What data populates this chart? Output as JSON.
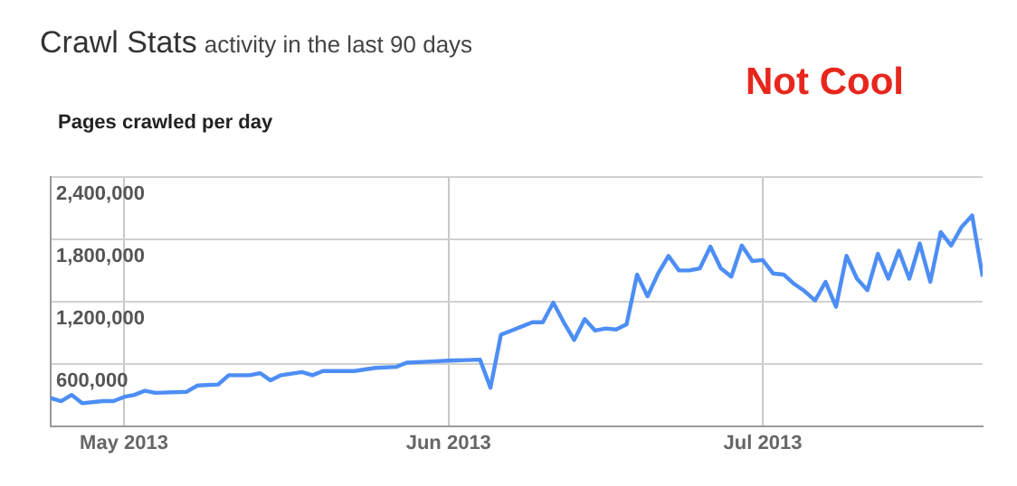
{
  "chart_data": {
    "type": "line",
    "title": "Crawl Stats",
    "subtitle": "activity in the last 90 days",
    "ylabel": "Pages crawled per day",
    "annotations": [
      "Not Cool"
    ],
    "x": [
      "2013-04-24",
      "2013-04-25",
      "2013-04-26",
      "2013-04-27",
      "2013-04-29",
      "2013-04-30",
      "2013-05-01",
      "2013-05-02",
      "2013-05-03",
      "2013-05-04",
      "2013-05-07",
      "2013-05-08",
      "2013-05-10",
      "2013-05-11",
      "2013-05-13",
      "2013-05-14",
      "2013-05-15",
      "2013-05-16",
      "2013-05-18",
      "2013-05-19",
      "2013-05-20",
      "2013-05-23",
      "2013-05-25",
      "2013-05-27",
      "2013-05-28",
      "2013-05-30",
      "2013-06-01",
      "2013-06-04",
      "2013-06-05",
      "2013-06-06",
      "2013-06-07",
      "2013-06-08",
      "2013-06-09",
      "2013-06-10",
      "2013-06-11",
      "2013-06-12",
      "2013-06-13",
      "2013-06-14",
      "2013-06-15",
      "2013-06-16",
      "2013-06-17",
      "2013-06-18",
      "2013-06-19",
      "2013-06-20",
      "2013-06-21",
      "2013-06-22",
      "2013-06-23",
      "2013-06-24",
      "2013-06-25",
      "2013-06-26",
      "2013-06-27",
      "2013-06-28",
      "2013-06-29",
      "2013-06-30",
      "2013-07-01",
      "2013-07-02",
      "2013-07-03",
      "2013-07-04",
      "2013-07-05",
      "2013-07-06",
      "2013-07-07",
      "2013-07-08",
      "2013-07-09",
      "2013-07-10",
      "2013-07-11",
      "2013-07-12",
      "2013-07-13",
      "2013-07-14",
      "2013-07-15",
      "2013-07-16",
      "2013-07-17",
      "2013-07-18",
      "2013-07-19",
      "2013-07-20",
      "2013-07-21",
      "2013-07-22"
    ],
    "series": [
      {
        "color": "#4d8ef5",
        "values": [
          270000,
          240000,
          300000,
          220000,
          240000,
          240000,
          280000,
          300000,
          340000,
          320000,
          330000,
          390000,
          400000,
          490000,
          490000,
          510000,
          440000,
          490000,
          520000,
          490000,
          530000,
          530000,
          560000,
          570000,
          610000,
          620000,
          630000,
          640000,
          370000,
          880000,
          920000,
          960000,
          1000000,
          1000000,
          1190000,
          1000000,
          830000,
          1030000,
          920000,
          940000,
          930000,
          980000,
          1460000,
          1250000,
          1470000,
          1640000,
          1500000,
          1500000,
          1520000,
          1730000,
          1520000,
          1440000,
          1740000,
          1590000,
          1600000,
          1470000,
          1460000,
          1370000,
          1300000,
          1210000,
          1390000,
          1150000,
          1640000,
          1420000,
          1310000,
          1660000,
          1420000,
          1690000,
          1420000,
          1760000,
          1390000,
          1870000,
          1740000,
          1920000,
          2030000,
          1440000
        ]
      }
    ],
    "xlim": [
      "2013-04-24",
      "2013-07-22"
    ],
    "xticks": [
      {
        "value": "2013-05-01",
        "label": "May 2013"
      },
      {
        "value": "2013-06-01",
        "label": "Jun 2013"
      },
      {
        "value": "2013-07-01",
        "label": "Jul 2013"
      }
    ],
    "ylim": [
      0,
      2400000
    ],
    "yticks": [
      {
        "value": 0,
        "label": null
      },
      {
        "value": 600000,
        "label": "600,000"
      },
      {
        "value": 1200000,
        "label": "1,200,000"
      },
      {
        "value": 1800000,
        "label": "1,800,000"
      },
      {
        "value": 2400000,
        "label": "2,400,000"
      }
    ],
    "grid": true,
    "legend": false,
    "marker": "none",
    "line_style": "solid"
  }
}
